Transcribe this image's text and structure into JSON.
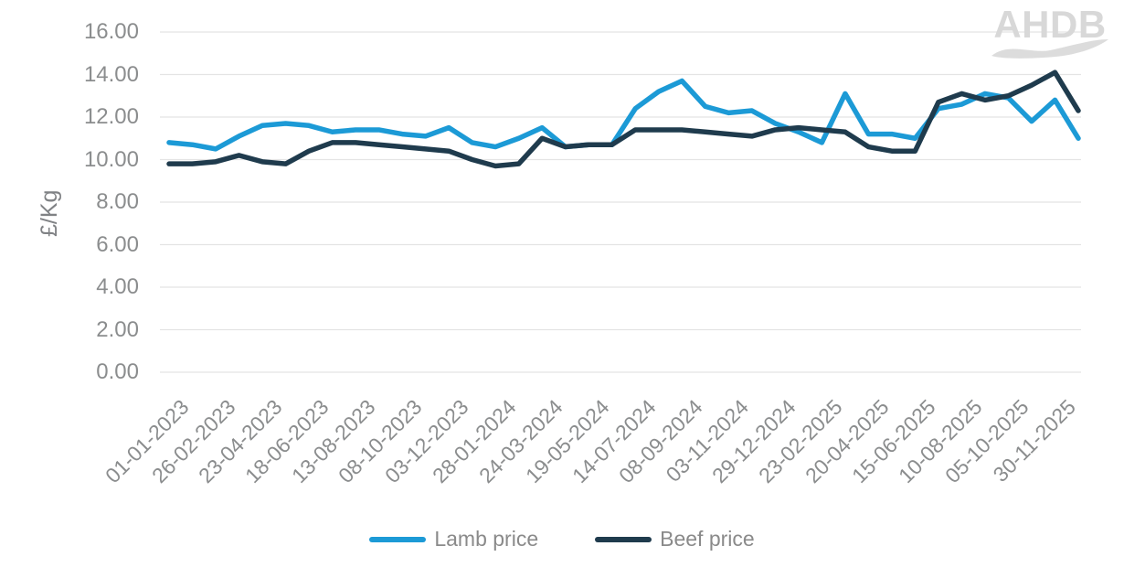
{
  "logo": {
    "text": "AHDB"
  },
  "axis_style": {
    "text_color": "#8b8d8e",
    "grid_color": "#e4e4e4",
    "background": "#ffffff"
  },
  "chart_data": {
    "type": "line",
    "title": "",
    "xlabel": "",
    "ylabel": "£/Kg",
    "ylim": [
      0,
      16
    ],
    "ytick_step": 2,
    "ytick_decimals": 2,
    "grid": "horizontal-on",
    "legend_position": "bottom-center",
    "tick_labels": [
      "01-01-2023",
      "26-02-2023",
      "23-04-2023",
      "18-06-2023",
      "13-08-2023",
      "08-10-2023",
      "03-12-2023",
      "28-01-2024",
      "24-03-2024",
      "19-05-2024",
      "14-07-2024",
      "08-09-2024",
      "03-11-2024",
      "29-12-2024",
      "23-02-2025",
      "20-04-2025",
      "15-06-2025",
      "10-08-2025",
      "05-10-2025",
      "30-11-2025"
    ],
    "points_per_tick": 2,
    "series": [
      {
        "name": "Lamb price",
        "color": "#1c9ad6",
        "values": [
          10.8,
          10.7,
          10.5,
          11.1,
          11.6,
          11.7,
          11.6,
          11.3,
          11.4,
          11.4,
          11.2,
          11.1,
          11.5,
          10.8,
          10.6,
          11.0,
          11.5,
          10.6,
          10.7,
          10.7,
          12.4,
          13.2,
          13.7,
          12.5,
          12.2,
          12.3,
          11.7,
          11.3,
          10.8,
          13.1,
          11.2,
          11.2,
          11.0,
          12.4,
          12.6,
          13.1,
          12.9,
          11.8,
          12.8,
          11.0
        ]
      },
      {
        "name": "Beef price",
        "color": "#1f3b4d",
        "values": [
          9.8,
          9.8,
          9.9,
          10.2,
          9.9,
          9.8,
          10.4,
          10.8,
          10.8,
          10.7,
          10.6,
          10.5,
          10.4,
          10.0,
          9.7,
          9.8,
          11.0,
          10.6,
          10.7,
          10.7,
          11.4,
          11.4,
          11.4,
          11.3,
          11.2,
          11.1,
          11.4,
          11.5,
          11.4,
          11.3,
          10.6,
          10.4,
          10.4,
          12.7,
          13.1,
          12.8,
          13.0,
          13.5,
          14.1,
          12.3
        ]
      }
    ]
  }
}
